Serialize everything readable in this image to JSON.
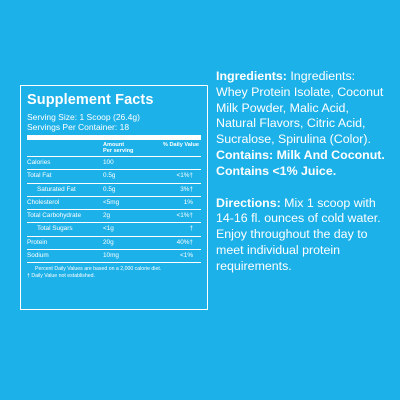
{
  "facts": {
    "title": "Supplement Facts",
    "serving_size": "Serving Size: 1 Scoop (26.4g)",
    "servings_per_container": "Servings Per Container: 18",
    "col_amount": "Amount",
    "col_per_serving": "Per serving",
    "col_dv": "% Daily Value",
    "rows": [
      {
        "name": "Calories",
        "amount": "100",
        "dv": ""
      },
      {
        "name": "Total Fat",
        "amount": "0.5g",
        "dv": "<1%†"
      },
      {
        "name": "Saturated Fat",
        "amount": "0.5g",
        "dv": "3%†"
      },
      {
        "name": "Cholesterol",
        "amount": "<5mg",
        "dv": "1%"
      },
      {
        "name": "Total Carbohydrate",
        "amount": "2g",
        "dv": "<1%†"
      },
      {
        "name": "Total Sugars",
        "amount": "<1g",
        "dv": "†"
      },
      {
        "name": "Protein",
        "amount": "20g",
        "dv": "40%†"
      },
      {
        "name": "Sodium",
        "amount": "10mg",
        "dv": "<1%"
      }
    ],
    "footnote_1": "Percent Daily Values are based on a 2,000 calorie diet.",
    "footnote_2": "† Daily Value not established."
  },
  "ingredients": {
    "label": "Ingredients:",
    "text": " Ingredients: Whey Protein Isolate, Coconut Milk Powder, Malic Acid, Natural Flavors, Citric Acid, Sucralose, Spirulina (Color).",
    "contains": "Contains: Milk And Coconut. Contains <1% Juice."
  },
  "directions": {
    "label": "Directions:",
    "text": " Mix 1 scoop with 14-16 fl. ounces  of cold water. Enjoy throughout the day to meet individual protein requirements."
  }
}
